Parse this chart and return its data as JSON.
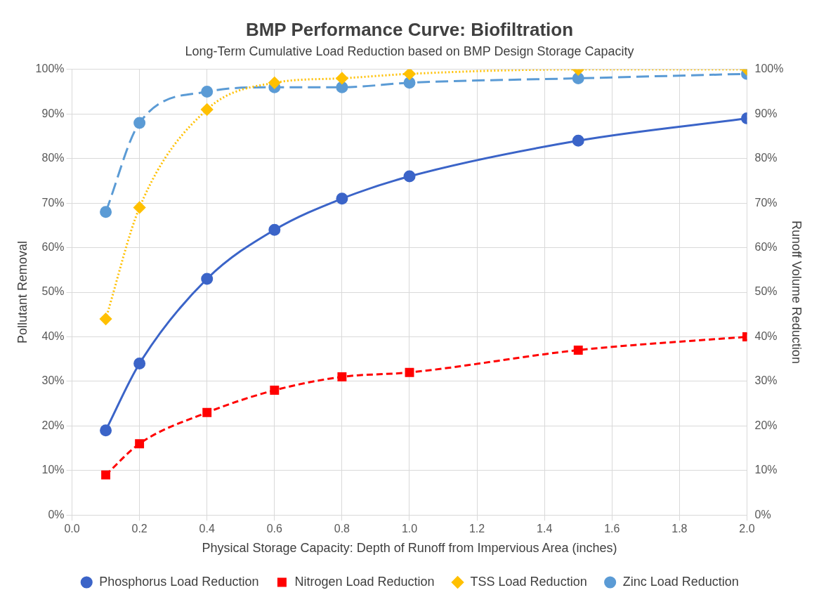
{
  "chart_data": {
    "type": "line",
    "title": "BMP Performance Curve: Biofiltration",
    "subtitle": "Long-Term Cumulative Load Reduction based on BMP Design Storage Capacity",
    "xlabel": "Physical Storage Capacity: Depth of Runoff from Impervious Area (inches)",
    "ylabel": "Pollutant Removal",
    "y2label": "Runoff Volume Reduction",
    "x": [
      0.1,
      0.2,
      0.4,
      0.6,
      0.8,
      1.0,
      1.5,
      2.0
    ],
    "series": [
      {
        "name": "Phosphorus Load Reduction",
        "color": "#3b64c8",
        "values": [
          19,
          34,
          53,
          64,
          71,
          76,
          84,
          89
        ],
        "marker": "circle",
        "line_style": "solid"
      },
      {
        "name": "Nitrogen Load Reduction",
        "color": "#ff0000",
        "values": [
          9,
          16,
          23,
          28,
          31,
          32,
          37,
          40
        ],
        "marker": "square",
        "line_style": "dashed"
      },
      {
        "name": "TSS Load Reduction",
        "color": "#ffc000",
        "values": [
          44,
          69,
          91,
          97,
          98,
          99,
          100,
          100
        ],
        "marker": "diamond",
        "line_style": "dotted"
      },
      {
        "name": "Zinc Load Reduction",
        "color": "#5b9bd5",
        "values": [
          68,
          88,
          95,
          96,
          96,
          97,
          98,
          99
        ],
        "marker": "circle",
        "line_style": "dashed"
      }
    ],
    "xlim": [
      0,
      2
    ],
    "xticks": [
      {
        "value": 0,
        "label": "0.0"
      },
      0.2,
      0.4,
      0.6,
      0.8,
      {
        "value": 1,
        "label": "1.0"
      },
      1.2,
      1.4,
      1.6,
      1.8,
      {
        "value": 2,
        "label": "2.0"
      }
    ],
    "ylim": [
      0,
      100
    ],
    "yticks": [
      {
        "value": 0,
        "label": "0%"
      },
      {
        "value": 10,
        "label": "10%"
      },
      {
        "value": 20,
        "label": "20%"
      },
      {
        "value": 30,
        "label": "30%"
      },
      {
        "value": 40,
        "label": "40%"
      },
      {
        "value": 50,
        "label": "50%"
      },
      {
        "value": 60,
        "label": "60%"
      },
      {
        "value": 70,
        "label": "70%"
      },
      {
        "value": 80,
        "label": "80%"
      },
      {
        "value": 90,
        "label": "90%"
      },
      {
        "value": 100,
        "label": "100%"
      }
    ],
    "y2lim": [
      0,
      100
    ],
    "y2ticks": [
      {
        "value": 0,
        "label": "0%"
      },
      {
        "value": 10,
        "label": "10%"
      },
      {
        "value": 20,
        "label": "20%"
      },
      {
        "value": 30,
        "label": "30%"
      },
      {
        "value": 40,
        "label": "40%"
      },
      {
        "value": 50,
        "label": "50%"
      },
      {
        "value": 60,
        "label": "60%"
      },
      {
        "value": 70,
        "label": "70%"
      },
      {
        "value": 80,
        "label": "80%"
      },
      {
        "value": 90,
        "label": "90%"
      },
      {
        "value": 100,
        "label": "100%"
      }
    ],
    "grid": true,
    "legend": "bottom"
  }
}
